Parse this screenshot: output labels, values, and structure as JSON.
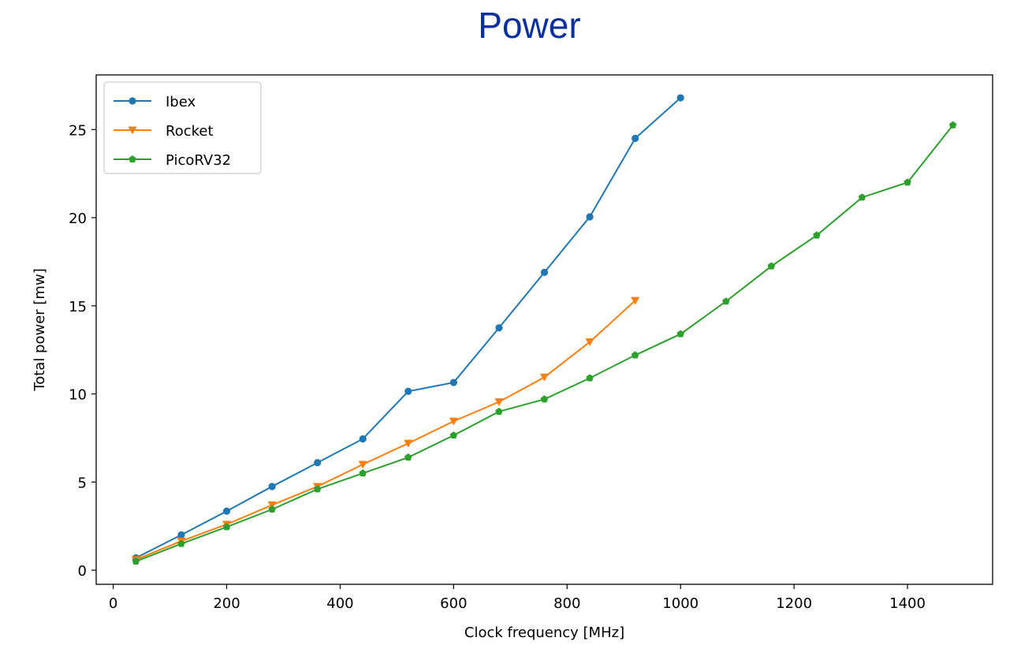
{
  "page": {
    "title": "Power"
  },
  "chart_data": {
    "type": "line",
    "title": "Power",
    "xlabel": "Clock frequency [MHz]",
    "ylabel": "Total power [mw]",
    "xlim": [
      -30,
      1550
    ],
    "ylim": [
      -0.8,
      28.1
    ],
    "x_ticks": [
      0,
      200,
      400,
      600,
      800,
      1000,
      1200,
      1400
    ],
    "y_ticks": [
      0,
      5,
      10,
      15,
      20,
      25
    ],
    "grid": false,
    "legend": "upper-left",
    "series": [
      {
        "name": "Ibex",
        "color": "#1f77b4",
        "marker": "circle",
        "x": [
          40,
          120,
          200,
          280,
          360,
          440,
          520,
          600,
          680,
          760,
          840,
          920,
          1000
        ],
        "y": [
          0.7,
          2.0,
          3.35,
          4.75,
          6.1,
          7.45,
          10.15,
          10.65,
          13.75,
          16.9,
          20.05,
          24.5,
          26.8
        ]
      },
      {
        "name": "Rocket",
        "color": "#ff7f0e",
        "marker": "triangle-down",
        "x": [
          40,
          120,
          200,
          280,
          360,
          440,
          520,
          600,
          680,
          760,
          840,
          920
        ],
        "y": [
          0.6,
          1.65,
          2.6,
          3.7,
          4.75,
          6.0,
          7.2,
          8.45,
          9.55,
          10.95,
          12.95,
          15.3
        ]
      },
      {
        "name": "PicoRV32",
        "color": "#2ca02c",
        "marker": "pentagon",
        "x": [
          40,
          120,
          200,
          280,
          360,
          440,
          520,
          600,
          680,
          760,
          840,
          920,
          1000,
          1080,
          1160,
          1240,
          1320,
          1400,
          1480
        ],
        "y": [
          0.5,
          1.5,
          2.45,
          3.45,
          4.6,
          5.5,
          6.4,
          7.65,
          9.0,
          9.7,
          10.9,
          12.2,
          13.4,
          15.25,
          17.25,
          19.0,
          21.15,
          22.0,
          25.25
        ]
      }
    ]
  }
}
